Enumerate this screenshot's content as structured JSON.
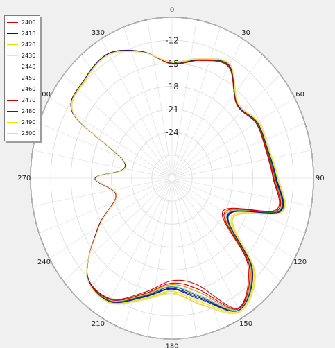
{
  "chart_data": {
    "type": "polar-line",
    "theta_direction": "clockwise",
    "theta_zero": "top",
    "angle_ticks": [
      "0",
      "30",
      "60",
      "90",
      "120",
      "150",
      "180",
      "210",
      "240",
      "270",
      "300",
      "330"
    ],
    "radial_ticks": [
      "-12",
      "-15",
      "-18",
      "-21",
      "-24"
    ],
    "r_range": [
      -30,
      -9
    ],
    "grid": true,
    "legend_position": "top-left",
    "theta": [
      0,
      15,
      30,
      45,
      60,
      75,
      90,
      105,
      120,
      135,
      150,
      165,
      180,
      195,
      210,
      225,
      240,
      255,
      270,
      285,
      300,
      315,
      330,
      345
    ],
    "series": [
      {
        "name": "2400",
        "color": "#d00000",
        "values": [
          -15,
          -14,
          -13.2,
          -16.4,
          -15.6,
          -15.6,
          -15,
          -14,
          -21.3,
          -14.1,
          -10.4,
          -15.6,
          -16.6,
          -14.6,
          -11.8,
          -12.2,
          -17.4,
          -21.4,
          -18.6,
          -22.8,
          -13,
          -11.7,
          -11.2,
          -12.9
        ]
      },
      {
        "name": "2410",
        "color": "#0000c8",
        "values": [
          -15,
          -14,
          -13,
          -16.3,
          -15.4,
          -15.3,
          -14.6,
          -13.4,
          -20.4,
          -13.2,
          -10.1,
          -13.8,
          -15.6,
          -14,
          -11.5,
          -12.2,
          -17.5,
          -21.4,
          -18.6,
          -22.8,
          -13,
          -11.7,
          -11.2,
          -12.9
        ]
      },
      {
        "name": "2420",
        "color": "#e8d800",
        "values": [
          -14.8,
          -13.8,
          -12.8,
          -16.1,
          -15.2,
          -15.1,
          -14.2,
          -13,
          -19.6,
          -12.6,
          -9.8,
          -12.9,
          -15,
          -13.6,
          -11.2,
          -12.1,
          -17.6,
          -21.5,
          -18.7,
          -22.9,
          -13.2,
          -11.9,
          -11.4,
          -13
        ]
      },
      {
        "name": "2430",
        "color": "#f0e6a0",
        "values": [
          -14.9,
          -13.9,
          -12.9,
          -16.2,
          -15.3,
          -15.2,
          -14.4,
          -13.2,
          -20,
          -12.9,
          -10,
          -13.4,
          -15.3,
          -13.8,
          -11.4,
          -12.2,
          -17.5,
          -21.5,
          -18.7,
          -22.8,
          -13.1,
          -11.8,
          -11.3,
          -13
        ]
      },
      {
        "name": "2440",
        "color": "#ff8c00",
        "values": [
          -15,
          -14,
          -13.1,
          -16.3,
          -15.5,
          -15.4,
          -14.8,
          -13.7,
          -20.8,
          -13.6,
          -10.2,
          -14.6,
          -16.1,
          -14.3,
          -11.6,
          -12.2,
          -17.4,
          -21.4,
          -18.6,
          -22.8,
          -13,
          -11.7,
          -11.2,
          -12.9
        ]
      },
      {
        "name": "2450",
        "color": "#9ecae1",
        "values": [
          -15,
          -14,
          -13.1,
          -16.3,
          -15.5,
          -15.4,
          -14.7,
          -13.6,
          -20.6,
          -13.4,
          -10.2,
          -14.2,
          -15.9,
          -14.2,
          -11.6,
          -12.2,
          -17.4,
          -21.4,
          -18.6,
          -22.8,
          -13,
          -11.7,
          -11.2,
          -12.9
        ]
      },
      {
        "name": "2460",
        "color": "#1a7a1a",
        "values": [
          -15,
          -14,
          -13.1,
          -16.3,
          -15.5,
          -15.4,
          -14.7,
          -13.5,
          -20.5,
          -13.3,
          -10.1,
          -14,
          -15.8,
          -14.1,
          -11.5,
          -12.2,
          -17.4,
          -21.4,
          -18.6,
          -22.8,
          -13,
          -11.7,
          -11.2,
          -12.9
        ]
      },
      {
        "name": "2470",
        "color": "#cc0000",
        "values": [
          -15.1,
          -14.1,
          -13.2,
          -16.4,
          -15.6,
          -15.5,
          -14.9,
          -13.8,
          -21,
          -13.8,
          -10.3,
          -15,
          -16.3,
          -14.4,
          -11.7,
          -12.2,
          -17.4,
          -21.4,
          -18.6,
          -22.8,
          -13,
          -11.7,
          -11.2,
          -12.9
        ]
      },
      {
        "name": "2480",
        "color": "#202080",
        "values": [
          -15,
          -14,
          -13,
          -16.3,
          -15.4,
          -15.3,
          -14.5,
          -13.3,
          -20.3,
          -13.1,
          -10.1,
          -13.6,
          -15.5,
          -13.9,
          -11.4,
          -12.2,
          -17.5,
          -21.5,
          -18.6,
          -22.8,
          -13,
          -11.7,
          -11.2,
          -12.9
        ]
      },
      {
        "name": "2490",
        "color": "#f2e200",
        "values": [
          -14.9,
          -13.9,
          -12.9,
          -16.2,
          -15.3,
          -15.2,
          -14.3,
          -13.1,
          -19.8,
          -12.8,
          -9.9,
          -13.2,
          -15.2,
          -13.7,
          -11.3,
          -12.1,
          -17.6,
          -21.5,
          -18.7,
          -22.9,
          -13.1,
          -11.8,
          -11.4,
          -13
        ]
      },
      {
        "name": "2500",
        "color": "#e8dfb0",
        "values": [
          -14.8,
          -13.8,
          -12.8,
          -16.1,
          -15.2,
          -15.1,
          -14.2,
          -13,
          -19.5,
          -12.5,
          -9.8,
          -12.8,
          -14.9,
          -13.5,
          -11.2,
          -12.1,
          -17.6,
          -21.5,
          -18.7,
          -22.9,
          -13.2,
          -11.9,
          -11.4,
          -13
        ]
      }
    ]
  }
}
